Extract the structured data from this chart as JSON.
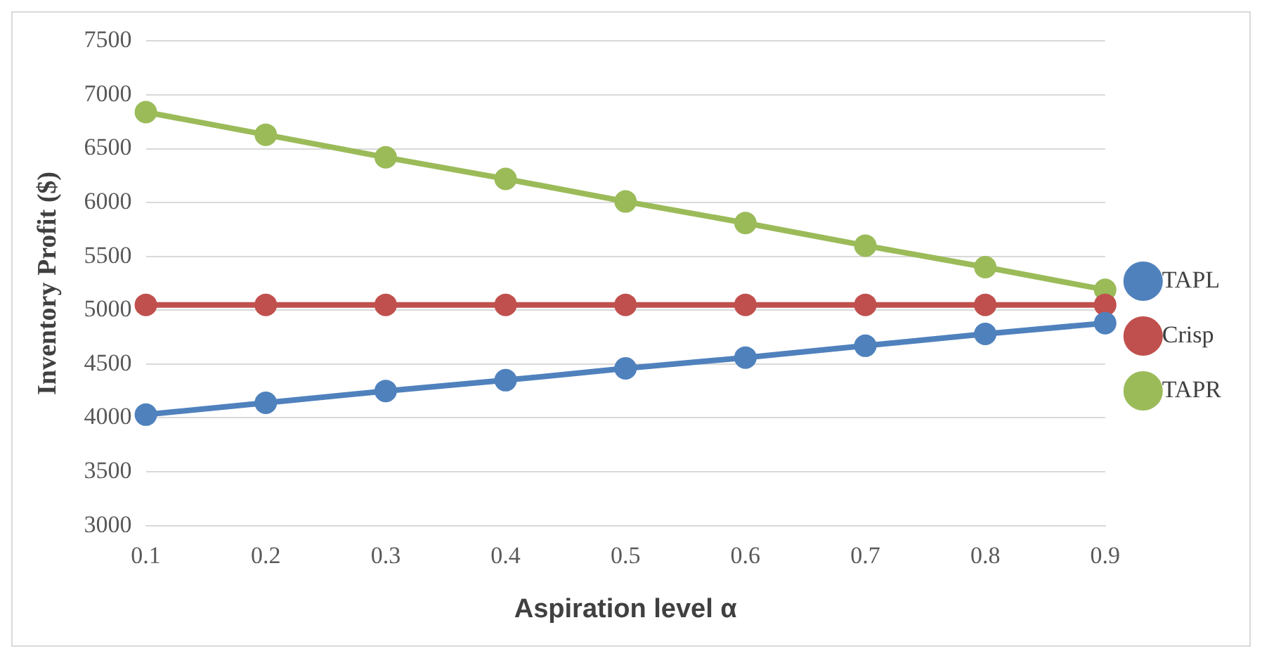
{
  "chart_data": {
    "type": "line",
    "xlabel": "Aspiration level α",
    "ylabel": "Inventory Profit ($)",
    "categories": [
      "0.1",
      "0.2",
      "0.3",
      "0.4",
      "0.5",
      "0.6",
      "0.7",
      "0.8",
      "0.9"
    ],
    "series": [
      {
        "name": "TAPL",
        "color": "#4f81bd",
        "values": [
          4030,
          4140,
          4250,
          4350,
          4460,
          4560,
          4670,
          4780,
          4880
        ]
      },
      {
        "name": "Crisp",
        "color": "#c0504d",
        "values": [
          5050,
          5050,
          5050,
          5050,
          5050,
          5050,
          5050,
          5050,
          5050
        ]
      },
      {
        "name": "TAPR",
        "color": "#9bbb59",
        "values": [
          6840,
          6630,
          6420,
          6220,
          6010,
          5810,
          5600,
          5400,
          5190
        ]
      }
    ],
    "ylim": [
      3000,
      7500
    ],
    "yticks": [
      3000,
      3500,
      4000,
      4500,
      5000,
      5500,
      6000,
      6500,
      7000,
      7500
    ],
    "grid": "y",
    "legend": "right",
    "marker": "circle",
    "line_style": "solid"
  }
}
